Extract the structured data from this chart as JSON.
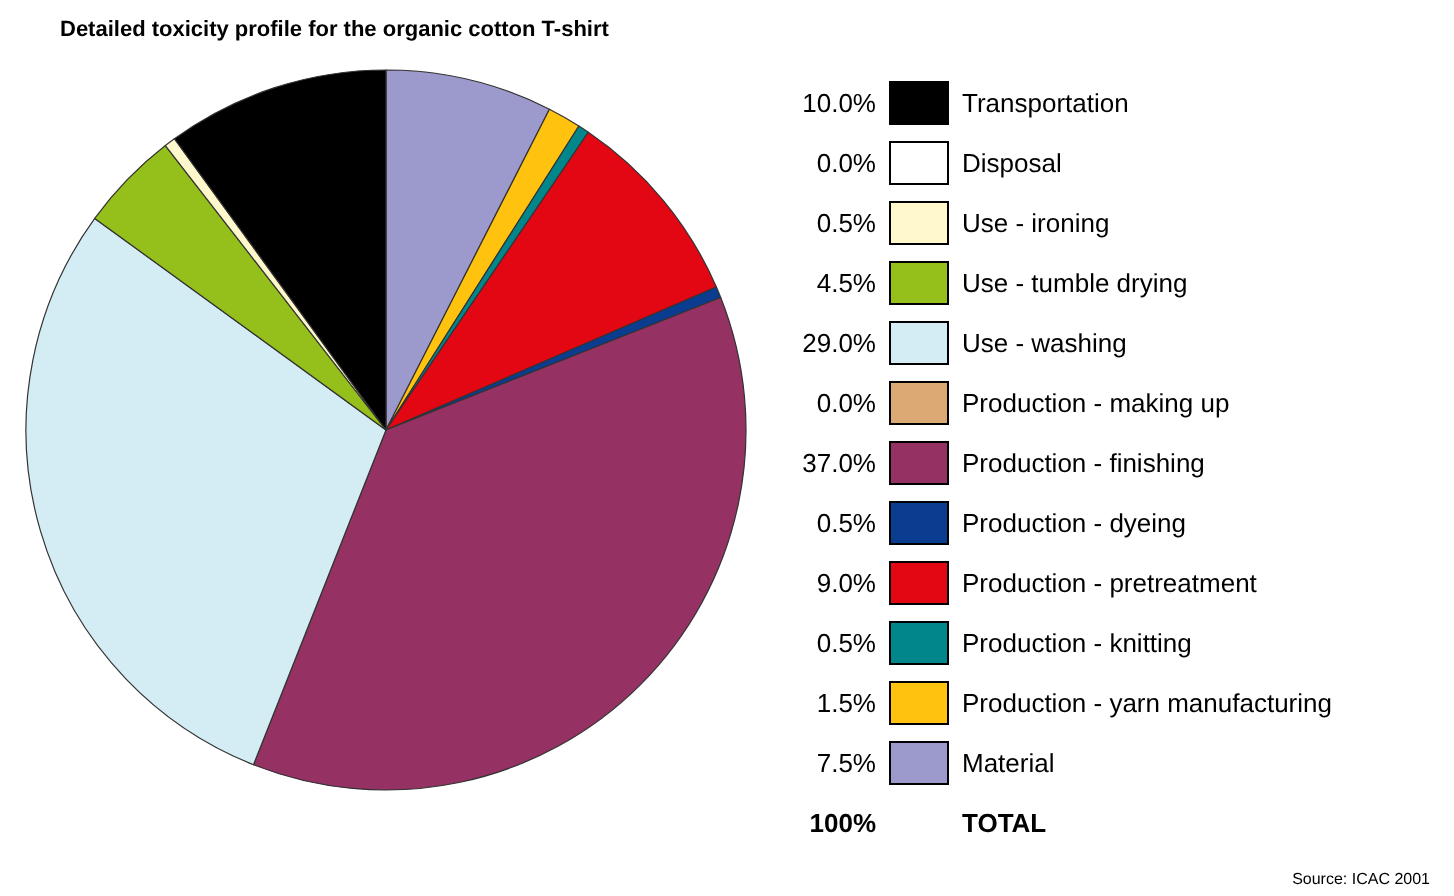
{
  "chart_data": {
    "type": "pie",
    "title": "Detailed toxicity profile for the organic cotton T-shirt",
    "categories": [
      "Transportation",
      "Disposal",
      "Use - ironing",
      "Use - tumble drying",
      "Use - washing",
      "Production - making up",
      "Production - finishing",
      "Production - dyeing",
      "Production - pretreatment",
      "Production - knitting",
      "Production - yarn manufacturing",
      "Material"
    ],
    "values": [
      10,
      0,
      0.5,
      4.5,
      29,
      0,
      37,
      0.5,
      9,
      0.5,
      1.5,
      7.5
    ],
    "value_labels": [
      "10.0%",
      "0.0%",
      "0.5%",
      "4.5%",
      "29.0%",
      "0.0%",
      "37.0%",
      "0.5%",
      "9.0%",
      "0.5%",
      "1.5%",
      "7.5%"
    ],
    "colors": [
      "#000000",
      "#ffffff",
      "#fff8cc",
      "#95bf1a",
      "#d4ecf4",
      "#dca874",
      "#953163",
      "#0a3d8f",
      "#e30613",
      "#00868b",
      "#ffc20e",
      "#9c99cc"
    ],
    "legend": "right",
    "annotations": [
      "100% TOTAL",
      "Source: ICAC 2001"
    ]
  }
}
